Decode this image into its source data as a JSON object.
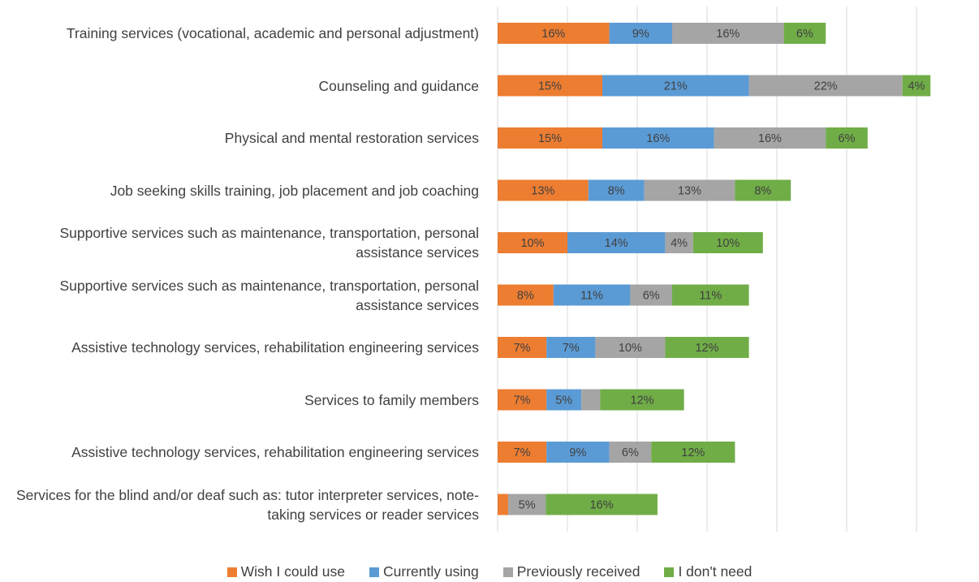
{
  "chart_data": {
    "type": "stacked_barh",
    "categories": [
      "Training services (vocational, academic and personal adjustment)",
      "Counseling and guidance",
      "Physical and mental restoration services",
      "Job seeking skills training, job placement and job coaching",
      "Supportive services such as maintenance, transportation, personal assistance services",
      "Supportive services such as maintenance, transportation, personal assistance services",
      "Assistive technology services, rehabilitation engineering services",
      "Services to family members",
      "Assistive technology services, rehabilitation engineering services",
      "Services for the blind and/or deaf such as: tutor interpreter services, note-taking services or reader services"
    ],
    "series": [
      {
        "name": "Wish I could use",
        "color": "#ed7d31",
        "values": [
          16,
          15,
          15,
          13,
          10,
          8,
          7,
          7,
          7,
          1.5
        ],
        "value_labels": [
          "16%",
          "15%",
          "15%",
          "13%",
          "10%",
          "8%",
          "7%",
          "7%",
          "7%",
          null
        ]
      },
      {
        "name": "Currently using",
        "color": "#5b9bd5",
        "values": [
          9,
          21,
          16,
          8,
          14,
          11,
          7,
          5,
          9,
          0
        ],
        "value_labels": [
          "9%",
          "21%",
          "16%",
          "8%",
          "14%",
          "11%",
          "7%",
          "5%",
          "9%",
          null
        ]
      },
      {
        "name": "Previously received",
        "color": "#a5a5a5",
        "values": [
          16,
          22,
          16,
          13,
          4,
          6,
          10,
          2.7,
          6,
          5.4
        ],
        "value_labels": [
          "16%",
          "22%",
          "16%",
          "13%",
          "4%",
          "6%",
          "10%",
          null,
          "6%",
          "5%"
        ]
      },
      {
        "name": "I don't need",
        "color": "#70ad47",
        "values": [
          6,
          4,
          6,
          8,
          10,
          11,
          12,
          12,
          12,
          16
        ],
        "value_labels": [
          "6%",
          "4%",
          "6%",
          "8%",
          "10%",
          "11%",
          "12%",
          "12%",
          "12%",
          "16%"
        ]
      }
    ],
    "xlim": [
      0,
      60
    ],
    "xticks": [
      0,
      10,
      20,
      30,
      40,
      50,
      60
    ],
    "xtick_labels": false,
    "grid": true,
    "legend": "bottom"
  }
}
